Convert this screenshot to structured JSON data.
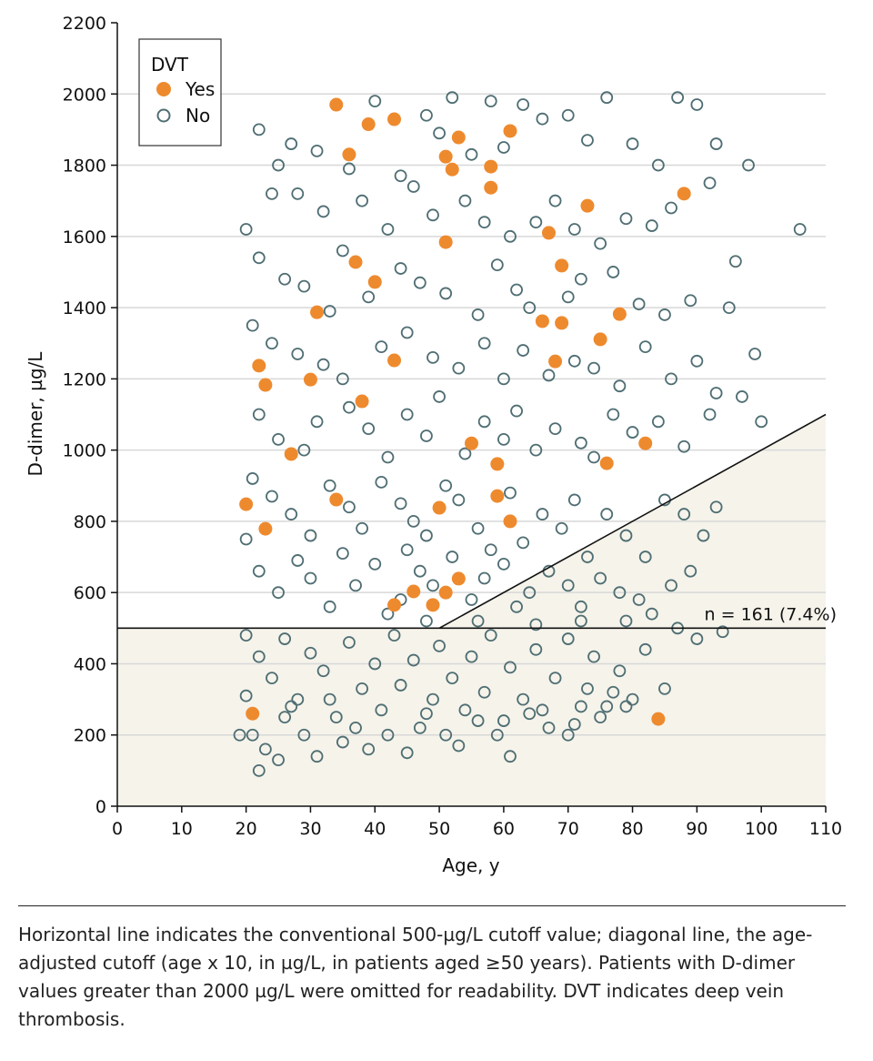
{
  "chart_data": {
    "type": "scatter",
    "xlabel": "Age, y",
    "ylabel": "D-dimer, µg/L",
    "xlim": [
      0,
      110
    ],
    "ylim": [
      0,
      2200
    ],
    "xticks": [
      0,
      10,
      20,
      30,
      40,
      50,
      60,
      70,
      80,
      90,
      100,
      110
    ],
    "yticks": [
      0,
      200,
      400,
      600,
      800,
      1000,
      1200,
      1400,
      1600,
      1800,
      2000,
      2200
    ],
    "grid": "horizontal",
    "legend": {
      "title": "DVT",
      "position": "top-left",
      "entries": [
        "Yes",
        "No"
      ]
    },
    "colors": {
      "yes": "#ee8a2e",
      "no": "#4f6e73",
      "shade": "#f5f3ea"
    },
    "reference_lines": {
      "conventional_cutoff": 500,
      "age_adjusted": {
        "from": [
          50,
          500
        ],
        "to": [
          110,
          1100
        ]
      }
    },
    "annotation": "n = 161 (7.4%)",
    "series": [
      {
        "name": "Yes",
        "points": [
          [
            34,
            1970
          ],
          [
            39,
            1915
          ],
          [
            43,
            1929
          ],
          [
            53,
            1878
          ],
          [
            61,
            1896
          ],
          [
            36,
            1830
          ],
          [
            51,
            1824
          ],
          [
            52,
            1788
          ],
          [
            58,
            1796
          ],
          [
            58,
            1737
          ],
          [
            88,
            1720
          ],
          [
            73,
            1686
          ],
          [
            67,
            1610
          ],
          [
            51,
            1584
          ],
          [
            37,
            1528
          ],
          [
            69,
            1518
          ],
          [
            40,
            1472
          ],
          [
            31,
            1387
          ],
          [
            78,
            1382
          ],
          [
            66,
            1362
          ],
          [
            69,
            1357
          ],
          [
            75,
            1311
          ],
          [
            43,
            1252
          ],
          [
            68,
            1249
          ],
          [
            22,
            1237
          ],
          [
            30,
            1198
          ],
          [
            23,
            1183
          ],
          [
            38,
            1137
          ],
          [
            27,
            989
          ],
          [
            55,
            1019
          ],
          [
            82,
            1019
          ],
          [
            59,
            961
          ],
          [
            76,
            963
          ],
          [
            34,
            861
          ],
          [
            20,
            848
          ],
          [
            59,
            871
          ],
          [
            50,
            838
          ],
          [
            61,
            800
          ],
          [
            23,
            779
          ],
          [
            53,
            639
          ],
          [
            46,
            603
          ],
          [
            43,
            565
          ],
          [
            51,
            600
          ],
          [
            49,
            565
          ],
          [
            84,
            245
          ],
          [
            21,
            260
          ]
        ]
      },
      {
        "name": "No",
        "points": [
          [
            22,
            1900
          ],
          [
            25,
            1800
          ],
          [
            27,
            1860
          ],
          [
            31,
            1840
          ],
          [
            36,
            1790
          ],
          [
            40,
            1980
          ],
          [
            44,
            1770
          ],
          [
            48,
            1940
          ],
          [
            50,
            1890
          ],
          [
            52,
            1990
          ],
          [
            55,
            1830
          ],
          [
            58,
            1980
          ],
          [
            60,
            1850
          ],
          [
            63,
            1970
          ],
          [
            66,
            1930
          ],
          [
            70,
            1940
          ],
          [
            73,
            1870
          ],
          [
            76,
            1990
          ],
          [
            80,
            1860
          ],
          [
            84,
            1800
          ],
          [
            87,
            1990
          ],
          [
            90,
            1970
          ],
          [
            93,
            1860
          ],
          [
            98,
            1800
          ],
          [
            106,
            1620
          ],
          [
            20,
            1620
          ],
          [
            24,
            1720
          ],
          [
            28,
            1720
          ],
          [
            32,
            1670
          ],
          [
            38,
            1700
          ],
          [
            42,
            1620
          ],
          [
            46,
            1740
          ],
          [
            49,
            1660
          ],
          [
            54,
            1700
          ],
          [
            57,
            1640
          ],
          [
            61,
            1600
          ],
          [
            65,
            1640
          ],
          [
            68,
            1700
          ],
          [
            71,
            1620
          ],
          [
            75,
            1580
          ],
          [
            79,
            1650
          ],
          [
            83,
            1630
          ],
          [
            86,
            1680
          ],
          [
            92,
            1750
          ],
          [
            96,
            1530
          ],
          [
            22,
            1540
          ],
          [
            26,
            1480
          ],
          [
            29,
            1460
          ],
          [
            33,
            1390
          ],
          [
            35,
            1560
          ],
          [
            39,
            1430
          ],
          [
            44,
            1510
          ],
          [
            47,
            1470
          ],
          [
            51,
            1440
          ],
          [
            56,
            1380
          ],
          [
            59,
            1520
          ],
          [
            62,
            1450
          ],
          [
            64,
            1400
          ],
          [
            70,
            1430
          ],
          [
            72,
            1480
          ],
          [
            77,
            1500
          ],
          [
            81,
            1410
          ],
          [
            85,
            1380
          ],
          [
            89,
            1420
          ],
          [
            95,
            1400
          ],
          [
            21,
            1350
          ],
          [
            24,
            1300
          ],
          [
            28,
            1270
          ],
          [
            32,
            1240
          ],
          [
            35,
            1200
          ],
          [
            41,
            1290
          ],
          [
            45,
            1330
          ],
          [
            49,
            1260
          ],
          [
            53,
            1230
          ],
          [
            57,
            1300
          ],
          [
            60,
            1200
          ],
          [
            63,
            1280
          ],
          [
            67,
            1210
          ],
          [
            71,
            1250
          ],
          [
            74,
            1230
          ],
          [
            78,
            1180
          ],
          [
            82,
            1290
          ],
          [
            86,
            1200
          ],
          [
            90,
            1250
          ],
          [
            93,
            1160
          ],
          [
            99,
            1270
          ],
          [
            22,
            1100
          ],
          [
            25,
            1030
          ],
          [
            29,
            1000
          ],
          [
            31,
            1080
          ],
          [
            36,
            1120
          ],
          [
            39,
            1060
          ],
          [
            42,
            980
          ],
          [
            45,
            1100
          ],
          [
            48,
            1040
          ],
          [
            50,
            1150
          ],
          [
            54,
            990
          ],
          [
            57,
            1080
          ],
          [
            60,
            1030
          ],
          [
            62,
            1110
          ],
          [
            65,
            1000
          ],
          [
            68,
            1060
          ],
          [
            72,
            1020
          ],
          [
            74,
            980
          ],
          [
            77,
            1100
          ],
          [
            80,
            1050
          ],
          [
            84,
            1080
          ],
          [
            88,
            1010
          ],
          [
            92,
            1100
          ],
          [
            97,
            1150
          ],
          [
            100,
            1080
          ],
          [
            21,
            920
          ],
          [
            24,
            870
          ],
          [
            27,
            820
          ],
          [
            30,
            760
          ],
          [
            33,
            900
          ],
          [
            36,
            840
          ],
          [
            38,
            780
          ],
          [
            41,
            910
          ],
          [
            44,
            850
          ],
          [
            46,
            800
          ],
          [
            48,
            760
          ],
          [
            51,
            900
          ],
          [
            53,
            860
          ],
          [
            56,
            780
          ],
          [
            58,
            720
          ],
          [
            61,
            880
          ],
          [
            63,
            740
          ],
          [
            66,
            820
          ],
          [
            69,
            780
          ],
          [
            71,
            860
          ],
          [
            73,
            700
          ],
          [
            76,
            820
          ],
          [
            79,
            760
          ],
          [
            82,
            700
          ],
          [
            85,
            860
          ],
          [
            88,
            820
          ],
          [
            91,
            760
          ],
          [
            93,
            840
          ],
          [
            20,
            750
          ],
          [
            22,
            660
          ],
          [
            25,
            600
          ],
          [
            28,
            690
          ],
          [
            30,
            640
          ],
          [
            33,
            560
          ],
          [
            35,
            710
          ],
          [
            37,
            620
          ],
          [
            40,
            680
          ],
          [
            42,
            540
          ],
          [
            45,
            720
          ],
          [
            47,
            660
          ],
          [
            49,
            620
          ],
          [
            52,
            700
          ],
          [
            55,
            580
          ],
          [
            57,
            640
          ],
          [
            60,
            680
          ],
          [
            62,
            560
          ],
          [
            64,
            600
          ],
          [
            67,
            660
          ],
          [
            70,
            620
          ],
          [
            72,
            560
          ],
          [
            75,
            640
          ],
          [
            78,
            600
          ],
          [
            81,
            580
          ],
          [
            83,
            540
          ],
          [
            86,
            620
          ],
          [
            89,
            660
          ],
          [
            20,
            480
          ],
          [
            22,
            420
          ],
          [
            24,
            360
          ],
          [
            26,
            470
          ],
          [
            28,
            300
          ],
          [
            30,
            430
          ],
          [
            32,
            380
          ],
          [
            34,
            250
          ],
          [
            36,
            460
          ],
          [
            38,
            330
          ],
          [
            40,
            400
          ],
          [
            41,
            270
          ],
          [
            43,
            480
          ],
          [
            44,
            340
          ],
          [
            46,
            410
          ],
          [
            47,
            220
          ],
          [
            49,
            300
          ],
          [
            50,
            450
          ],
          [
            52,
            360
          ],
          [
            54,
            270
          ],
          [
            55,
            420
          ],
          [
            57,
            320
          ],
          [
            58,
            480
          ],
          [
            60,
            240
          ],
          [
            61,
            390
          ],
          [
            63,
            300
          ],
          [
            65,
            440
          ],
          [
            66,
            270
          ],
          [
            68,
            360
          ],
          [
            70,
            470
          ],
          [
            71,
            230
          ],
          [
            73,
            330
          ],
          [
            74,
            420
          ],
          [
            76,
            280
          ],
          [
            78,
            380
          ],
          [
            80,
            300
          ],
          [
            82,
            440
          ],
          [
            85,
            330
          ],
          [
            87,
            500
          ],
          [
            90,
            470
          ],
          [
            94,
            490
          ],
          [
            21,
            200
          ],
          [
            23,
            160
          ],
          [
            26,
            250
          ],
          [
            29,
            200
          ],
          [
            31,
            140
          ],
          [
            33,
            300
          ],
          [
            35,
            180
          ],
          [
            37,
            220
          ],
          [
            39,
            160
          ],
          [
            42,
            200
          ],
          [
            45,
            150
          ],
          [
            48,
            260
          ],
          [
            51,
            200
          ],
          [
            53,
            170
          ],
          [
            56,
            240
          ],
          [
            59,
            200
          ],
          [
            61,
            140
          ],
          [
            64,
            260
          ],
          [
            67,
            220
          ],
          [
            70,
            200
          ],
          [
            72,
            280
          ],
          [
            75,
            250
          ],
          [
            77,
            320
          ],
          [
            79,
            280
          ],
          [
            20,
            310
          ],
          [
            19,
            200
          ],
          [
            22,
            100
          ],
          [
            25,
            130
          ],
          [
            27,
            280
          ],
          [
            44,
            580
          ],
          [
            48,
            520
          ],
          [
            56,
            520
          ],
          [
            65,
            510
          ],
          [
            72,
            520
          ],
          [
            79,
            520
          ]
        ]
      }
    ]
  },
  "caption": "Horizontal line indicates the conventional 500-µg/L cutoff value; diagonal line, the age-adjusted cutoff (age x 10, in µg/L, in patients aged ≥50 years). Patients with D-dimer values greater than 2000 µg/L were omitted for readability. DVT indicates deep vein thrombosis."
}
